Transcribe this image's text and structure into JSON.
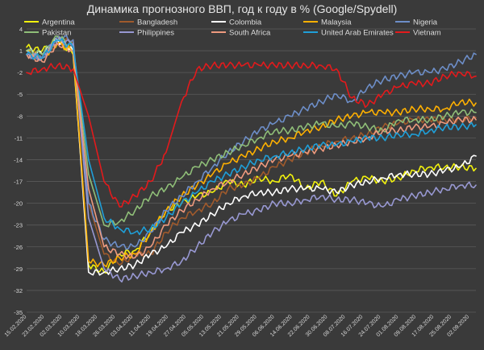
{
  "chart_data": {
    "type": "line",
    "title": "Динамика прогнозного ВВП, год к году в % (Google/Spydell)",
    "xlabel": "",
    "ylabel": "",
    "ylim": [
      -35,
      4
    ],
    "yticks": [
      4,
      1,
      -2,
      -5,
      -8,
      -11,
      -14,
      -17,
      -20,
      -23,
      -26,
      -29,
      -32,
      -35
    ],
    "grid": true,
    "legend_placement": "top",
    "x_tick_labels": [
      "15.02.2020",
      "23.02.2020",
      "02.03.2020",
      "10.03.2020",
      "18.03.2020",
      "26.03.2020",
      "03.04.2020",
      "11.04.2020",
      "19.04.2020",
      "27.04.2020",
      "05.05.2020",
      "13.05.2020",
      "21.05.2020",
      "29.05.2020",
      "06.06.2020",
      "14.06.2020",
      "22.06.2020",
      "30.06.2020",
      "08.07.2020",
      "16.07.2020",
      "24.07.2020",
      "01.08.2020",
      "09.08.2020",
      "17.08.2020",
      "25.08.2020",
      "02.09.2020"
    ],
    "x_day_points": [
      0,
      7,
      14,
      21,
      28,
      35,
      42,
      49,
      56,
      63,
      70,
      77,
      84,
      91,
      98,
      105,
      112,
      119,
      126,
      133,
      140,
      147,
      154,
      161,
      168,
      175,
      182,
      189,
      196,
      203
    ],
    "series": [
      {
        "name": "Argentina",
        "color": "#f2f20d",
        "values": [
          1.5,
          1.0,
          2.5,
          0.5,
          -28.5,
          -29.5,
          -27,
          -26.5,
          -24,
          -21,
          -20,
          -19,
          -18.5,
          -17,
          -17.5,
          -16.5,
          -17,
          -16,
          -18,
          -17,
          -19,
          -17,
          -16.5,
          -17,
          -16.5,
          -15.5,
          -15,
          -15,
          -15,
          -15.2
        ]
      },
      {
        "name": "Bangladesh",
        "color": "#a05a2c",
        "values": [
          0.5,
          0.0,
          2.0,
          2.5,
          -20,
          -27,
          -28.5,
          -27,
          -27,
          -24,
          -22,
          -21,
          -20,
          -18,
          -17.5,
          -16.5,
          -15,
          -14,
          -13,
          -12,
          -11.5,
          -11,
          -10.5,
          -9.5,
          -9,
          -8.5,
          -8.5,
          -8.5,
          -8.5,
          -8.2
        ]
      },
      {
        "name": "Colombia",
        "color": "#ffffff",
        "values": [
          1.0,
          0.5,
          2.5,
          1.0,
          -29.5,
          -29.5,
          -29,
          -28.5,
          -27,
          -26,
          -24,
          -23,
          -21.5,
          -20,
          -19,
          -18.5,
          -18.5,
          -18,
          -18,
          -18,
          -18.5,
          -17.5,
          -17,
          -16.5,
          -16,
          -16,
          -16,
          -15.5,
          -15,
          -13.5
        ]
      },
      {
        "name": "Malaysia",
        "color": "#ffb000",
        "values": [
          1.0,
          0.0,
          2.0,
          1.0,
          -28,
          -28.5,
          -27.5,
          -27,
          -24,
          -21,
          -19,
          -17.5,
          -16,
          -14.5,
          -13.5,
          -12.5,
          -11.5,
          -11,
          -10,
          -9.5,
          -8.5,
          -8,
          -7.5,
          -7.5,
          -7.5,
          -7,
          -7,
          -7,
          -6,
          -6.2
        ]
      },
      {
        "name": "Nigeria",
        "color": "#6d8ec8",
        "values": [
          0.5,
          0.0,
          3.0,
          2.5,
          -20,
          -25,
          -26,
          -26,
          -24,
          -21,
          -19,
          -17,
          -15,
          -13,
          -11.5,
          -10,
          -9,
          -8,
          -7,
          -6,
          -5,
          -6,
          -4,
          -3,
          -2.5,
          -2,
          -2,
          -1.5,
          -0.5,
          0.5
        ]
      },
      {
        "name": "Pakistan",
        "color": "#8fbe78",
        "values": [
          1.0,
          0.5,
          3.0,
          1.5,
          -16,
          -23,
          -22.5,
          -21,
          -19,
          -18,
          -16.5,
          -15,
          -14,
          -13,
          -12,
          -11,
          -10,
          -10,
          -9.5,
          -9,
          -9.5,
          -9,
          -9.5,
          -10,
          -8.5,
          -8.5,
          -8.5,
          -8,
          -7.5,
          -7.5
        ]
      },
      {
        "name": "Philippines",
        "color": "#9898d2",
        "values": [
          0.5,
          0.0,
          2.5,
          2.0,
          -22,
          -29,
          -30.5,
          -30,
          -29.5,
          -29,
          -28,
          -26,
          -24,
          -22.5,
          -21.5,
          -21,
          -20,
          -20,
          -19.5,
          -19,
          -19.5,
          -19.5,
          -20,
          -20.5,
          -19.5,
          -19,
          -18.5,
          -18,
          -17.5,
          -17.5
        ]
      },
      {
        "name": "South Africa",
        "color": "#ee9a7e",
        "values": [
          0.5,
          -0.5,
          2.0,
          1.0,
          -18,
          -26,
          -27,
          -27.5,
          -26,
          -23,
          -21,
          -19.5,
          -18,
          -17,
          -16,
          -15,
          -14,
          -13.5,
          -13,
          -12.5,
          -12,
          -11.5,
          -11,
          -10,
          -10,
          -9.5,
          -9.5,
          -9,
          -8.5,
          -8.5
        ]
      },
      {
        "name": "United Arab Emirates",
        "color": "#1f9fd8",
        "values": [
          0.5,
          0.0,
          2.5,
          1.5,
          -14,
          -22,
          -23.5,
          -24,
          -23.5,
          -22,
          -20,
          -18.5,
          -17,
          -16,
          -15,
          -14,
          -13.5,
          -13,
          -12.5,
          -12,
          -12,
          -11.5,
          -11,
          -11,
          -10.5,
          -10.5,
          -10,
          -9.5,
          -9.5,
          -9.2
        ]
      },
      {
        "name": "Vietnam",
        "color": "#e31a1c",
        "values": [
          -2.0,
          -1.5,
          -1.0,
          -1.5,
          -8,
          -17,
          -20.5,
          -19,
          -17,
          -13,
          -6,
          -1.5,
          -1.0,
          -1.0,
          -1.0,
          -1.0,
          -1.0,
          -1.0,
          -1.0,
          -1.0,
          -1.5,
          -5.5,
          -6.5,
          -5,
          -4,
          -3.5,
          -3.5,
          -2.5,
          -2.0,
          -2.5
        ]
      }
    ]
  }
}
